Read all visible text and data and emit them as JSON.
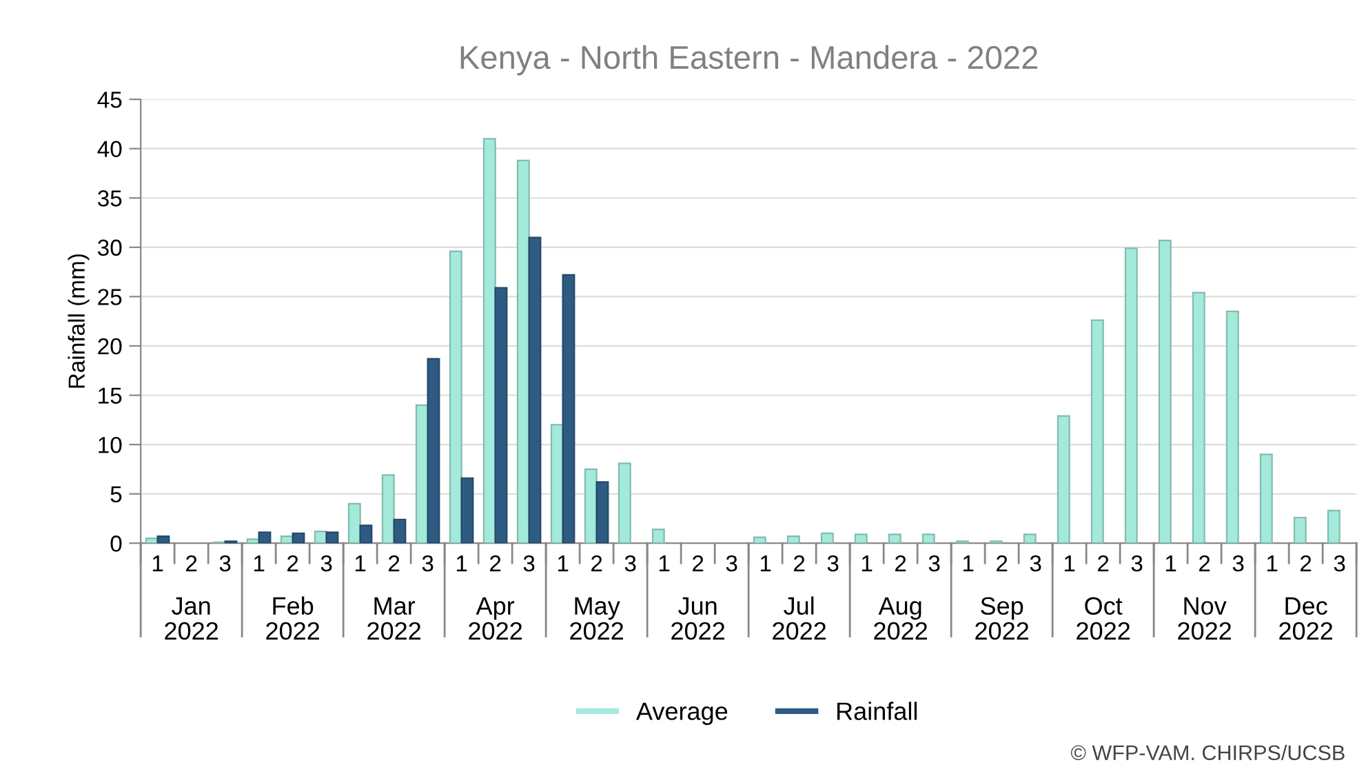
{
  "chart_data": {
    "type": "bar",
    "title": "Kenya - North Eastern - Mandera - 2022",
    "ylabel": "Rainfall (mm)",
    "categories": [
      "1",
      "2",
      "3",
      "1",
      "2",
      "3",
      "1",
      "2",
      "3",
      "1",
      "2",
      "3",
      "1",
      "2",
      "3",
      "1",
      "2",
      "3",
      "1",
      "2",
      "3",
      "1",
      "2",
      "3",
      "1",
      "2",
      "3",
      "1",
      "2",
      "3",
      "1",
      "2",
      "3",
      "1",
      "2",
      "3"
    ],
    "series": [
      {
        "name": "Average",
        "color": "#a3eadb",
        "values": [
          0.5,
          0,
          0.1,
          0.4,
          0.7,
          1.2,
          4.0,
          6.9,
          14.0,
          29.6,
          41.0,
          38.8,
          12.0,
          7.5,
          8.1,
          1.4,
          0,
          0,
          0.6,
          0.7,
          1.0,
          0.9,
          0.9,
          0.9,
          0.2,
          0.2,
          0.9,
          12.9,
          22.6,
          29.9,
          30.7,
          25.4,
          23.5,
          9.0,
          2.6,
          3.3
        ]
      },
      {
        "name": "Rainfall",
        "color": "#2e5b82",
        "values": [
          0.7,
          0,
          0.2,
          1.1,
          1.0,
          1.1,
          1.8,
          2.4,
          18.7,
          6.6,
          25.9,
          31.0,
          27.2,
          6.2,
          null,
          null,
          null,
          null,
          null,
          null,
          null,
          null,
          null,
          null,
          null,
          null,
          null,
          null,
          null,
          null,
          null,
          null,
          null,
          null,
          null,
          null
        ]
      }
    ],
    "ylim": [
      0,
      45
    ],
    "yticks": [
      0,
      5,
      10,
      15,
      20,
      25,
      30,
      35,
      40,
      45
    ],
    "grid": "y",
    "legend": "bottom",
    "annotations": [
      "Jan\n2022",
      "Feb\n2022",
      "Mar\n2022",
      "Apr\n2022",
      "May\n2022",
      "Jun\n2022",
      "Jul\n2022",
      "Aug\n2022",
      "Sep\n2022",
      "Oct\n2022",
      "Nov\n2022",
      "Dec\n2022",
      "© WFP-VAM. CHIRPS/UCSB"
    ]
  }
}
